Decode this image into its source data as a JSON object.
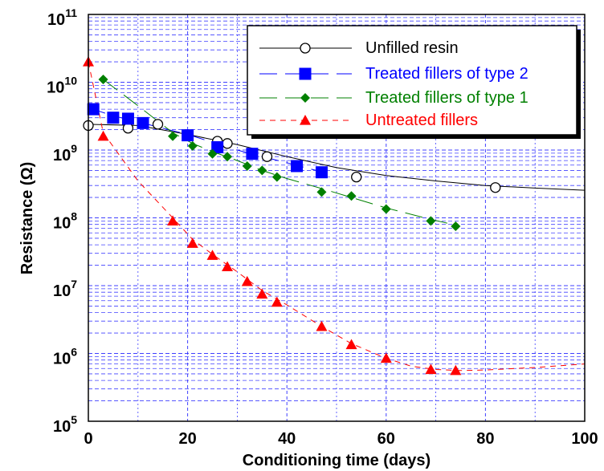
{
  "chart_data": {
    "type": "line",
    "xlabel": "Conditioning time (days)",
    "ylabel": "Resistance (Ω)",
    "xlim": [
      0,
      100
    ],
    "ylim": [
      100000,
      100000000000
    ],
    "y_scale": "log",
    "grid": true,
    "legend_position": "top-right",
    "x_ticks": [
      "0",
      "20",
      "40",
      "60",
      "80",
      "100"
    ],
    "y_ticks": [
      {
        "base": "10",
        "exp": "5"
      },
      {
        "base": "10",
        "exp": "6"
      },
      {
        "base": "10",
        "exp": "7"
      },
      {
        "base": "10",
        "exp": "8"
      },
      {
        "base": "10",
        "exp": "9"
      },
      {
        "base": "10",
        "exp": "10"
      },
      {
        "base": "10",
        "exp": "11"
      }
    ],
    "series": [
      {
        "name": "Unfilled resin",
        "color": "#000000",
        "marker": "open-circle",
        "line_style": "solid",
        "x": [
          0,
          8,
          14,
          26,
          28,
          36,
          54,
          82
        ],
        "y": [
          2300000000,
          2100000000,
          2400000000,
          1350000000,
          1250000000,
          800000000,
          400000000,
          280000000
        ],
        "fit": {
          "x": [
            0,
            10,
            20,
            30,
            40,
            50,
            60,
            70,
            80,
            90,
            100
          ],
          "y": [
            2400000000,
            2300000000,
            1700000000,
            1200000000,
            800000000,
            550000000,
            420000000,
            350000000,
            300000000,
            275000000,
            255000000
          ]
        }
      },
      {
        "name": "Treated fillers of type 2",
        "color": "#0000ff",
        "marker": "filled-square",
        "line_style": "long-dash",
        "x": [
          1,
          5,
          8,
          11,
          20,
          26,
          33,
          42,
          47
        ],
        "y": [
          4000000000,
          3000000000,
          2900000000,
          2500000000,
          1650000000,
          1100000000,
          880000000,
          580000000,
          470000000
        ],
        "fit": {
          "x": [
            0,
            5,
            10,
            15,
            20,
            25,
            30,
            35,
            40,
            45,
            48
          ],
          "y": [
            4200000000,
            3200000000,
            2600000000,
            2100000000,
            1700000000,
            1300000000,
            1000000000,
            800000000,
            650000000,
            520000000,
            460000000
          ]
        }
      },
      {
        "name": "Treated fillers of type 1",
        "color": "#008000",
        "marker": "filled-diamond",
        "line_style": "long-dash",
        "x": [
          3,
          17,
          21,
          25,
          28,
          32,
          35,
          38,
          47,
          53,
          60,
          69,
          74
        ],
        "y": [
          11000000000,
          1600000000,
          1150000000,
          880000000,
          800000000,
          580000000,
          500000000,
          400000000,
          240000000,
          210000000,
          135000000,
          90000000,
          75000000
        ],
        "fit": {
          "x": [
            3,
            10,
            17,
            21,
            25,
            30,
            35,
            40,
            47,
            53,
            60,
            69,
            74
          ],
          "y": [
            11000000000,
            4500000000,
            1800000000,
            1250000000,
            950000000,
            700000000,
            500000000,
            380000000,
            270000000,
            200000000,
            140000000,
            95000000,
            78000000
          ]
        }
      },
      {
        "name": "Untreated fillers",
        "color": "#ff0000",
        "marker": "filled-triangle",
        "line_style": "dashed",
        "x": [
          0,
          3,
          17,
          21,
          25,
          28,
          32,
          35,
          38,
          47,
          53,
          60,
          69,
          74
        ],
        "y": [
          20000000000,
          1600000000,
          90000000,
          42000000,
          28000000,
          19000000,
          11500000,
          7500000,
          5700000,
          2500000,
          1350000,
          850000,
          580000,
          560000
        ],
        "fit": {
          "x": [
            0,
            3,
            10,
            17,
            21,
            25,
            30,
            35,
            40,
            47,
            53,
            60,
            65,
            70,
            75,
            80,
            90,
            100
          ],
          "y": [
            20000000000,
            1800000000,
            350000000,
            100000000,
            48000000,
            29000000,
            16000000,
            8500000,
            5200000,
            2500000,
            1400000,
            850000,
            650000,
            580000,
            560000,
            570000,
            620000,
            700000
          ]
        }
      }
    ]
  }
}
